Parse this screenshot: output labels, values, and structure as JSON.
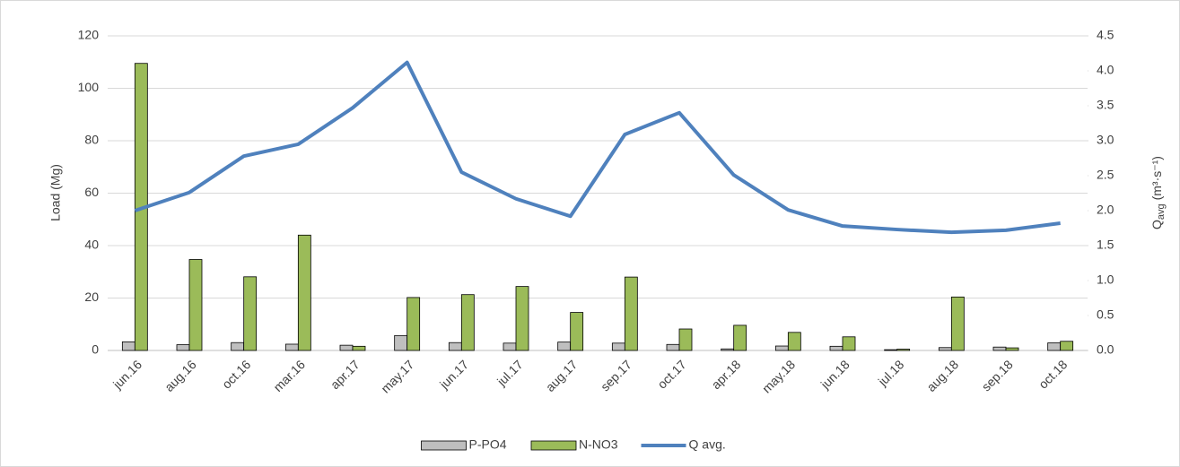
{
  "chart_data": {
    "type": "bar_line",
    "y_label": "Load (Mg)",
    "y2_label": {
      "main": "Q",
      "sub": "avg",
      "unit": " (m³·s⁻¹)"
    },
    "categories": [
      "jun.16",
      "aug.16",
      "oct.16",
      "mar.16",
      "apr.17",
      "may.17",
      "jun.17",
      "jul.17",
      "aug.17",
      "sep.17",
      "oct.17",
      "apr.18",
      "may.18",
      "jun.18",
      "jul.18",
      "aug.18",
      "sep.18",
      "oct.18"
    ],
    "series": [
      {
        "name": "P-PO4",
        "type": "bar",
        "color": "#bfbfbf",
        "values": [
          3.3,
          2.2,
          3.0,
          2.4,
          2.0,
          5.7,
          3.0,
          2.8,
          3.2,
          2.8,
          2.3,
          0.6,
          1.7,
          1.6,
          0.3,
          1.1,
          1.3,
          2.9
        ]
      },
      {
        "name": "N-NO3",
        "type": "bar",
        "color": "#9bbb59",
        "values": [
          109.5,
          34.7,
          28.1,
          44.0,
          1.6,
          20.2,
          21.3,
          24.4,
          14.5,
          28.0,
          8.2,
          9.6,
          6.9,
          5.2,
          0.5,
          20.4,
          1.0,
          3.5
        ]
      },
      {
        "name": "Q avg.",
        "type": "line",
        "axis": "y2",
        "color": "#4f81bd",
        "values": [
          2.0,
          2.26,
          2.78,
          2.95,
          3.47,
          4.12,
          2.55,
          2.17,
          1.92,
          3.09,
          3.4,
          2.51,
          2.01,
          1.78,
          1.73,
          1.69,
          1.72,
          1.82
        ]
      }
    ],
    "ylim": [
      0,
      120
    ],
    "yticks": [
      0,
      20,
      40,
      60,
      80,
      100,
      120
    ],
    "y2lim": [
      0,
      4.5
    ],
    "y2ticks": [
      {
        "value": 0,
        "label": "0.0"
      },
      0.5,
      {
        "value": 1,
        "label": "1.0"
      },
      1.5,
      {
        "value": 2,
        "label": "2.0"
      },
      2.5,
      {
        "value": 3,
        "label": "3.0"
      },
      3.5,
      {
        "value": 4,
        "label": "4.0"
      },
      4.5
    ],
    "grid": true,
    "legend": "bottom"
  }
}
